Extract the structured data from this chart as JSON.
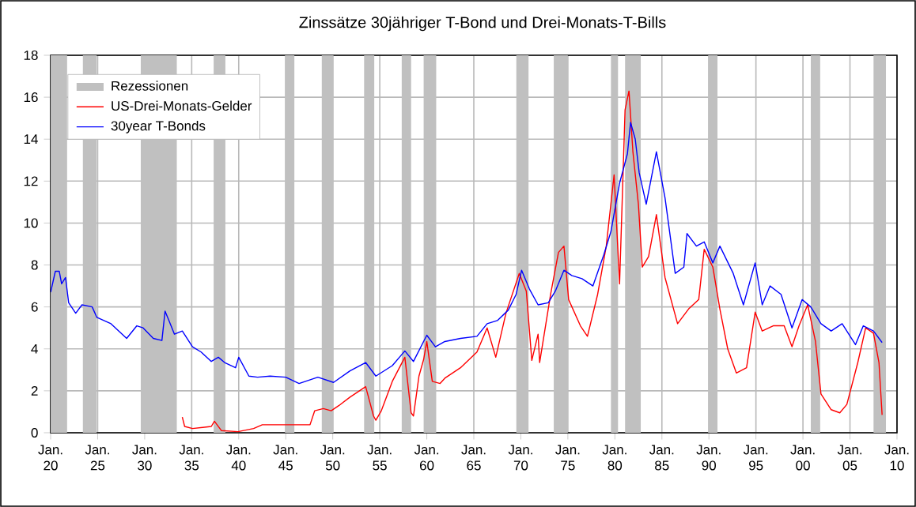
{
  "chart_data": {
    "type": "line",
    "title": "Zinssätze 30jähriger T-Bond und Drei-Monats-T-Bills",
    "xlim": [
      "1920-01",
      "2010-01"
    ],
    "ylim": [
      0,
      18
    ],
    "xticks": [
      {
        "value": "1920-01",
        "label": "Jan. 20"
      },
      {
        "value": "1925-01",
        "label": "Jan. 25"
      },
      {
        "value": "1930-01",
        "label": "Jan. 30"
      },
      {
        "value": "1935-01",
        "label": "Jan. 35"
      },
      {
        "value": "1940-01",
        "label": "Jan. 40"
      },
      {
        "value": "1945-01",
        "label": "Jan. 45"
      },
      {
        "value": "1950-01",
        "label": "Jan. 50"
      },
      {
        "value": "1955-01",
        "label": "Jan. 55"
      },
      {
        "value": "1960-01",
        "label": "Jan. 60"
      },
      {
        "value": "1965-01",
        "label": "Jan. 65"
      },
      {
        "value": "1970-01",
        "label": "Jan. 70"
      },
      {
        "value": "1975-01",
        "label": "Jan. 75"
      },
      {
        "value": "1980-01",
        "label": "Jan. 80"
      },
      {
        "value": "1985-01",
        "label": "Jan. 85"
      },
      {
        "value": "1990-01",
        "label": "Jan. 90"
      },
      {
        "value": "1995-01",
        "label": "Jan. 95"
      },
      {
        "value": "2000-01",
        "label": "Jan. 00"
      },
      {
        "value": "2005-01",
        "label": "Jan. 05"
      },
      {
        "value": "2010-01",
        "label": "Jan. 10"
      }
    ],
    "yticks": [
      0,
      2,
      4,
      6,
      8,
      10,
      12,
      14,
      16,
      18
    ],
    "grid": true,
    "legend": "top left",
    "bands": [
      {
        "axis": "x",
        "from": "1920-01",
        "to": "1921-10",
        "label": "Rezessionen",
        "color": "#c0c0c0"
      },
      {
        "axis": "x",
        "from": "1923-06",
        "to": "1924-12",
        "color": "#c0c0c0"
      },
      {
        "axis": "x",
        "from": "1929-08",
        "to": "1933-06",
        "color": "#c0c0c0"
      },
      {
        "axis": "x",
        "from": "1937-05",
        "to": "1938-08",
        "color": "#c0c0c0"
      },
      {
        "axis": "x",
        "from": "1944-12",
        "to": "1945-12",
        "color": "#c0c0c0"
      },
      {
        "axis": "x",
        "from": "1948-11",
        "to": "1950-02",
        "color": "#c0c0c0"
      },
      {
        "axis": "x",
        "from": "1953-05",
        "to": "1954-06",
        "color": "#c0c0c0"
      },
      {
        "axis": "x",
        "from": "1957-05",
        "to": "1958-05",
        "color": "#c0c0c0"
      },
      {
        "axis": "x",
        "from": "1959-09",
        "to": "1961-01",
        "color": "#c0c0c0"
      },
      {
        "axis": "x",
        "from": "1969-07",
        "to": "1970-11",
        "color": "#c0c0c0"
      },
      {
        "axis": "x",
        "from": "1973-07",
        "to": "1975-01",
        "color": "#c0c0c0"
      },
      {
        "axis": "x",
        "from": "1979-08",
        "to": "1980-05",
        "color": "#c0c0c0"
      },
      {
        "axis": "x",
        "from": "1981-02",
        "to": "1982-10",
        "color": "#c0c0c0"
      },
      {
        "axis": "x",
        "from": "1989-12",
        "to": "1990-12",
        "color": "#c0c0c0"
      },
      {
        "axis": "x",
        "from": "2000-11",
        "to": "2001-11",
        "color": "#c0c0c0"
      },
      {
        "axis": "x",
        "from": "2007-07",
        "to": "2008-11",
        "color": "#c0c0c0"
      }
    ],
    "series": [
      {
        "name": "US-Drei-Monats-Gelder",
        "color": "#ff0000",
        "x": [
          "1934-01",
          "1934-04",
          "1935-02",
          "1937-02",
          "1937-06",
          "1938-03",
          "1939-12",
          "1941-08",
          "1942-07",
          "1947-08",
          "1948-02",
          "1949-01",
          "1949-11",
          "1950-09",
          "1951-11",
          "1953-07",
          "1954-05",
          "1954-08",
          "1955-03",
          "1956-05",
          "1957-09",
          "1958-05",
          "1958-08",
          "1959-03",
          "1959-09",
          "1960-01",
          "1960-08",
          "1961-06",
          "1961-12",
          "1963-08",
          "1965-05",
          "1966-06",
          "1967-05",
          "1968-06",
          "1969-11",
          "1970-08",
          "1971-03",
          "1971-11",
          "1972-01",
          "1973-03",
          "1974-01",
          "1974-08",
          "1975-02",
          "1976-05",
          "1977-02",
          "1978-03",
          "1979-02",
          "1979-12",
          "1980-07",
          "1981-02",
          "1981-07",
          "1981-12",
          "1982-07",
          "1982-12",
          "1983-08",
          "1984-06",
          "1985-05",
          "1986-09",
          "1987-11",
          "1988-12",
          "1989-07",
          "1990-06",
          "1991-03",
          "1992-01",
          "1992-12",
          "1994-01",
          "1994-12",
          "1995-09",
          "1996-11",
          "1998-01",
          "1998-11",
          "1999-08",
          "2000-07",
          "2001-05",
          "2001-12",
          "2003-01",
          "2003-12",
          "2004-09",
          "2005-11",
          "2006-09",
          "2007-07",
          "2008-02",
          "2008-06"
        ],
        "values": [
          0.75,
          0.3,
          0.2,
          0.3,
          0.55,
          0.1,
          0.05,
          0.2,
          0.38,
          0.38,
          1.05,
          1.15,
          1.05,
          1.3,
          1.7,
          2.2,
          0.8,
          0.6,
          1.05,
          2.45,
          3.6,
          0.95,
          0.8,
          2.7,
          3.5,
          4.35,
          2.45,
          2.35,
          2.6,
          3.1,
          3.85,
          5.0,
          3.6,
          5.7,
          7.6,
          6.75,
          3.45,
          4.7,
          3.35,
          6.6,
          8.6,
          8.9,
          6.35,
          5.1,
          4.6,
          6.6,
          8.9,
          12.3,
          7.1,
          15.4,
          16.3,
          13.4,
          10.9,
          7.9,
          8.4,
          10.4,
          7.4,
          5.2,
          5.9,
          6.35,
          8.75,
          7.9,
          5.9,
          4.0,
          2.85,
          3.1,
          5.75,
          4.85,
          5.1,
          5.1,
          4.1,
          5.1,
          6.1,
          4.35,
          1.85,
          1.1,
          0.95,
          1.35,
          3.35,
          5.0,
          4.75,
          3.35,
          0.85
        ]
      },
      {
        "name": "30year T-Bonds",
        "color": "#0000ff",
        "x": [
          "1920-01",
          "1920-07",
          "1920-12",
          "1921-03",
          "1921-08",
          "1921-12",
          "1922-09",
          "1923-05",
          "1924-06",
          "1924-12",
          "1926-06",
          "1928-02",
          "1929-03",
          "1929-11",
          "1930-12",
          "1931-11",
          "1932-03",
          "1932-08",
          "1933-03",
          "1934-01",
          "1935-02",
          "1936-01",
          "1937-02",
          "1937-11",
          "1938-07",
          "1939-09",
          "1940-01",
          "1941-02",
          "1942-01",
          "1943-05",
          "1945-01",
          "1946-06",
          "1948-06",
          "1950-02",
          "1951-11",
          "1953-07",
          "1954-08",
          "1956-05",
          "1957-09",
          "1958-08",
          "1960-01",
          "1960-12",
          "1961-12",
          "1963-08",
          "1965-05",
          "1966-06",
          "1967-07",
          "1968-09",
          "1969-07",
          "1970-02",
          "1970-12",
          "1971-11",
          "1972-12",
          "1973-09",
          "1974-08",
          "1975-06",
          "1976-07",
          "1977-09",
          "1978-11",
          "1979-08",
          "1980-07",
          "1981-05",
          "1981-09",
          "1982-03",
          "1982-08",
          "1983-05",
          "1984-06",
          "1985-05",
          "1986-06",
          "1987-05",
          "1987-09",
          "1988-09",
          "1989-07",
          "1990-06",
          "1991-03",
          "1992-08",
          "1993-09",
          "1994-12",
          "1995-09",
          "1996-07",
          "1997-09",
          "1998-11",
          "1999-12",
          "2000-11",
          "2001-12",
          "2003-01",
          "2004-03",
          "2005-08",
          "2006-06",
          "2007-07",
          "2008-06"
        ],
        "values": [
          6.7,
          7.7,
          7.7,
          7.1,
          7.4,
          6.2,
          5.7,
          6.1,
          6.0,
          5.5,
          5.2,
          4.5,
          5.1,
          5.0,
          4.5,
          4.4,
          5.8,
          5.35,
          4.7,
          4.85,
          4.1,
          3.85,
          3.4,
          3.6,
          3.35,
          3.1,
          3.6,
          2.7,
          2.65,
          2.7,
          2.65,
          2.35,
          2.65,
          2.4,
          2.95,
          3.35,
          2.7,
          3.2,
          3.9,
          3.4,
          4.65,
          4.1,
          4.35,
          4.5,
          4.6,
          5.2,
          5.35,
          5.85,
          6.6,
          7.75,
          6.85,
          6.1,
          6.2,
          6.75,
          7.75,
          7.5,
          7.35,
          7.0,
          8.5,
          9.6,
          11.9,
          13.3,
          14.8,
          14.0,
          12.4,
          10.9,
          13.4,
          11.2,
          7.6,
          7.9,
          9.5,
          8.9,
          9.1,
          8.1,
          8.9,
          7.6,
          6.1,
          8.1,
          6.1,
          7.0,
          6.6,
          5.0,
          6.35,
          6.0,
          5.2,
          4.85,
          5.2,
          4.2,
          5.1,
          4.85,
          4.3
        ]
      }
    ]
  }
}
